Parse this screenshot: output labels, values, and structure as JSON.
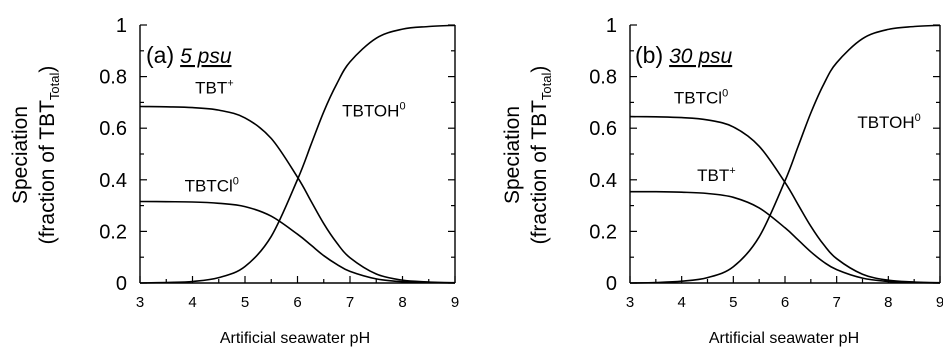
{
  "chart_data": [
    {
      "type": "line",
      "title_letter": "(a)",
      "title_condition": "5 psu",
      "xlabel": "Artificial seawater pH",
      "ylabel_line1": "Speciation",
      "ylabel_prefix": "(fraction of TBT",
      "ylabel_sub": "Total",
      "ylabel_suffix": ")",
      "xlim": [
        3,
        9
      ],
      "ylim": [
        0,
        1
      ],
      "x_ticks": [
        "3",
        "4",
        "5",
        "6",
        "7",
        "8",
        "9"
      ],
      "y_ticks": [
        "0",
        "0.2",
        "0.4",
        "0.6",
        "0.8",
        "1"
      ],
      "x": [
        3.0,
        3.5,
        4.0,
        4.5,
        5.0,
        5.5,
        6.0,
        6.25,
        6.5,
        6.75,
        7.0,
        7.5,
        8.0,
        8.5,
        9.0
      ],
      "series": [
        {
          "name_base": "TBT",
          "name_sup": "+",
          "label_x": 4.05,
          "label_y": 0.735,
          "values": [
            0.684,
            0.683,
            0.68,
            0.67,
            0.64,
            0.56,
            0.41,
            0.32,
            0.23,
            0.155,
            0.098,
            0.035,
            0.011,
            0.004,
            0.001
          ]
        },
        {
          "name_base": "TBTCl",
          "name_sup": "0",
          "label_x": 3.85,
          "label_y": 0.355,
          "values": [
            0.316,
            0.315,
            0.314,
            0.309,
            0.296,
            0.259,
            0.189,
            0.148,
            0.106,
            0.072,
            0.045,
            0.016,
            0.005,
            0.002,
            0.0
          ]
        },
        {
          "name_base": "TBTOH",
          "name_sup": "0",
          "label_x": 6.85,
          "label_y": 0.645,
          "values": [
            0.0,
            0.002,
            0.006,
            0.021,
            0.064,
            0.181,
            0.401,
            0.532,
            0.664,
            0.773,
            0.857,
            0.949,
            0.984,
            0.994,
            0.999
          ]
        }
      ]
    },
    {
      "type": "line",
      "title_letter": "(b)",
      "title_condition": "30 psu",
      "xlabel": "Artificial seawater pH",
      "ylabel_line1": "Speciation",
      "ylabel_prefix": "(fraction of TBT",
      "ylabel_sub": "Total",
      "ylabel_suffix": ")",
      "xlim": [
        3,
        9
      ],
      "ylim": [
        0,
        1
      ],
      "x_ticks": [
        "3",
        "4",
        "5",
        "6",
        "7",
        "8",
        "9"
      ],
      "y_ticks": [
        "0",
        "0.2",
        "0.4",
        "0.6",
        "0.8",
        "1"
      ],
      "x": [
        3.0,
        3.5,
        4.0,
        4.5,
        5.0,
        5.5,
        6.0,
        6.25,
        6.5,
        6.75,
        7.0,
        7.5,
        8.0,
        8.5,
        9.0
      ],
      "series": [
        {
          "name_base": "TBTCl",
          "name_sup": "0",
          "label_x": 3.85,
          "label_y": 0.695,
          "values": [
            0.645,
            0.644,
            0.641,
            0.632,
            0.605,
            0.53,
            0.39,
            0.305,
            0.22,
            0.148,
            0.094,
            0.034,
            0.011,
            0.004,
            0.001
          ]
        },
        {
          "name_base": "TBT",
          "name_sup": "+",
          "label_x": 4.3,
          "label_y": 0.395,
          "values": [
            0.354,
            0.354,
            0.352,
            0.347,
            0.332,
            0.291,
            0.214,
            0.168,
            0.121,
            0.081,
            0.052,
            0.019,
            0.006,
            0.002,
            0.0
          ]
        },
        {
          "name_base": "TBTOH",
          "name_sup": "0",
          "label_x": 7.4,
          "label_y": 0.6,
          "values": [
            0.0,
            0.002,
            0.007,
            0.021,
            0.063,
            0.179,
            0.396,
            0.527,
            0.659,
            0.771,
            0.854,
            0.947,
            0.983,
            0.994,
            0.999
          ]
        }
      ]
    }
  ]
}
